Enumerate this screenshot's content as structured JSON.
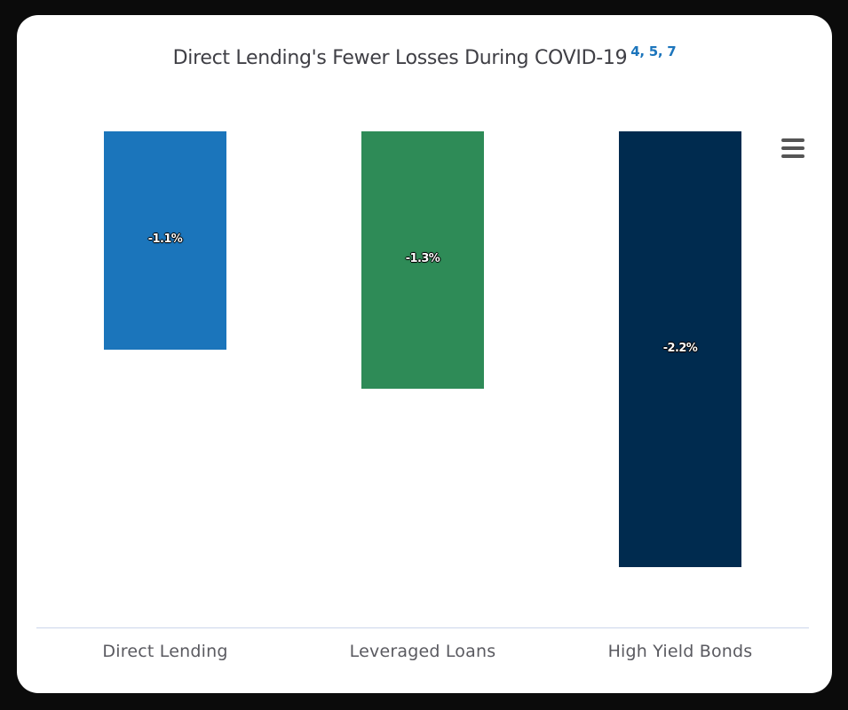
{
  "chart": {
    "title": "Direct Lending's Fewer Losses During COVID-19",
    "footnotes": "4, 5, 7",
    "menu_icon": "hamburger-menu-icon"
  },
  "chart_data": {
    "type": "bar",
    "title": "Direct Lending's Fewer Losses During COVID-19",
    "categories": [
      "Direct Lending",
      "Leveraged Loans",
      "High Yield Bonds"
    ],
    "values": [
      -1.1,
      -1.3,
      -2.2
    ],
    "data_labels": [
      "-1.1%",
      "-1.3%",
      "-2.2%"
    ],
    "colors": [
      "#1b75bb",
      "#2e8b57",
      "#002b4f"
    ],
    "xlabel": "",
    "ylabel": "",
    "ylim": [
      -2.2,
      0
    ],
    "grid": false,
    "legend": "none",
    "orientation": "vertical, negative values hanging from top"
  }
}
